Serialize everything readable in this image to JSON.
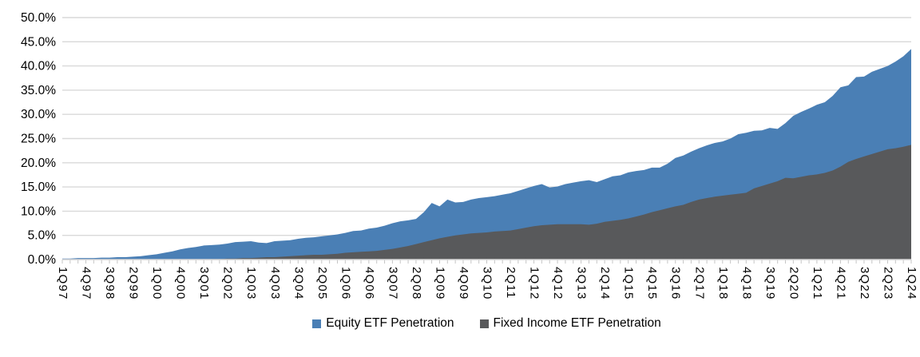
{
  "chart_data": {
    "type": "area",
    "title": "",
    "mode": "overlap",
    "grid": true,
    "legend_position": "bottom",
    "ylim": [
      0,
      50
    ],
    "ytick_step": 5,
    "yticks": [
      "0.0%",
      "5.0%",
      "10.0%",
      "15.0%",
      "20.0%",
      "25.0%",
      "30.0%",
      "35.0%",
      "40.0%",
      "45.0%",
      "50.0%"
    ],
    "label_interval": 3,
    "x": [
      "1Q97",
      "2Q97",
      "3Q97",
      "4Q97",
      "1Q98",
      "2Q98",
      "3Q98",
      "4Q98",
      "1Q99",
      "2Q99",
      "3Q99",
      "4Q99",
      "1Q00",
      "2Q00",
      "3Q00",
      "4Q00",
      "1Q01",
      "2Q01",
      "3Q01",
      "4Q01",
      "1Q02",
      "2Q02",
      "3Q02",
      "4Q02",
      "1Q03",
      "2Q03",
      "3Q03",
      "4Q03",
      "1Q04",
      "2Q04",
      "3Q04",
      "4Q04",
      "1Q05",
      "2Q05",
      "3Q05",
      "4Q05",
      "1Q06",
      "2Q06",
      "3Q06",
      "4Q06",
      "1Q07",
      "2Q07",
      "3Q07",
      "4Q07",
      "1Q08",
      "2Q08",
      "3Q08",
      "4Q08",
      "1Q09",
      "2Q09",
      "3Q09",
      "4Q09",
      "1Q10",
      "2Q10",
      "3Q10",
      "4Q10",
      "1Q11",
      "2Q11",
      "3Q11",
      "4Q11",
      "1Q12",
      "2Q12",
      "3Q12",
      "4Q12",
      "1Q13",
      "2Q13",
      "3Q13",
      "4Q13",
      "1Q14",
      "2Q14",
      "3Q14",
      "4Q14",
      "1Q15",
      "2Q15",
      "3Q15",
      "4Q15",
      "1Q16",
      "2Q16",
      "3Q16",
      "4Q16",
      "1Q17",
      "2Q17",
      "3Q17",
      "4Q17",
      "1Q18",
      "2Q18",
      "3Q18",
      "4Q18",
      "1Q19",
      "2Q19",
      "3Q19",
      "4Q19",
      "1Q20",
      "2Q20",
      "3Q20",
      "4Q20",
      "1Q21",
      "2Q21",
      "3Q21",
      "4Q21",
      "1Q22",
      "2Q22",
      "3Q22",
      "4Q22",
      "1Q23",
      "2Q23",
      "3Q23",
      "4Q23",
      "1Q24"
    ],
    "series": [
      {
        "name": "Equity ETF Penetration",
        "color": "#4A7FB5",
        "values": [
          0.2,
          0.2,
          0.3,
          0.3,
          0.3,
          0.4,
          0.4,
          0.5,
          0.5,
          0.6,
          0.7,
          0.9,
          1.1,
          1.4,
          1.7,
          2.1,
          2.4,
          2.6,
          2.9,
          3.0,
          3.1,
          3.3,
          3.6,
          3.7,
          3.8,
          3.5,
          3.4,
          3.8,
          3.9,
          4.0,
          4.3,
          4.5,
          4.6,
          4.8,
          5.0,
          5.2,
          5.5,
          5.9,
          6.0,
          6.4,
          6.6,
          7.0,
          7.5,
          7.9,
          8.1,
          8.4,
          9.8,
          11.7,
          11.0,
          12.4,
          11.8,
          11.9,
          12.4,
          12.7,
          12.9,
          13.1,
          13.4,
          13.7,
          14.2,
          14.7,
          15.2,
          15.6,
          14.9,
          15.1,
          15.6,
          15.9,
          16.2,
          16.4,
          16.0,
          16.6,
          17.2,
          17.4,
          18.0,
          18.3,
          18.5,
          19.0,
          19.0,
          19.8,
          21.0,
          21.5,
          22.3,
          23.0,
          23.6,
          24.1,
          24.4,
          25.0,
          25.9,
          26.2,
          26.6,
          26.7,
          27.2,
          27.0,
          28.2,
          29.7,
          30.5,
          31.2,
          32.0,
          32.5,
          33.8,
          35.6,
          36.0,
          37.7,
          37.8,
          38.8,
          39.4,
          40.0,
          40.9,
          42.0,
          43.5
        ]
      },
      {
        "name": "Fixed Income ETF Penetration",
        "color": "#58595B",
        "values": [
          0,
          0,
          0,
          0,
          0,
          0,
          0,
          0,
          0,
          0,
          0,
          0,
          0,
          0,
          0,
          0,
          0,
          0,
          0,
          0.1,
          0.1,
          0.2,
          0.2,
          0.3,
          0.3,
          0.4,
          0.5,
          0.5,
          0.6,
          0.7,
          0.8,
          0.9,
          1.0,
          1.0,
          1.1,
          1.2,
          1.4,
          1.5,
          1.6,
          1.7,
          1.8,
          2.0,
          2.2,
          2.5,
          2.8,
          3.2,
          3.6,
          4.0,
          4.4,
          4.7,
          5.0,
          5.2,
          5.4,
          5.5,
          5.6,
          5.8,
          5.9,
          6.0,
          6.3,
          6.6,
          6.9,
          7.1,
          7.2,
          7.3,
          7.3,
          7.3,
          7.3,
          7.2,
          7.4,
          7.8,
          8.0,
          8.2,
          8.5,
          8.9,
          9.3,
          9.8,
          10.2,
          10.6,
          11.0,
          11.3,
          11.9,
          12.4,
          12.7,
          13.0,
          13.2,
          13.4,
          13.6,
          13.8,
          14.7,
          15.2,
          15.7,
          16.2,
          16.9,
          16.8,
          17.1,
          17.4,
          17.6,
          17.9,
          18.4,
          19.2,
          20.2,
          20.8,
          21.3,
          21.8,
          22.3,
          22.8,
          23.0,
          23.3,
          23.7
        ]
      }
    ]
  },
  "legend": {
    "items": [
      {
        "label": "Equity ETF Penetration",
        "color": "#4A7FB5"
      },
      {
        "label": "Fixed Income ETF Penetration",
        "color": "#58595B"
      }
    ]
  },
  "colors": {
    "background": "#FFFFFF",
    "gridline": "#D9D9D9",
    "axis_line": "#D9D9D9",
    "tick": "#C6C6C6",
    "text": "#000000"
  }
}
